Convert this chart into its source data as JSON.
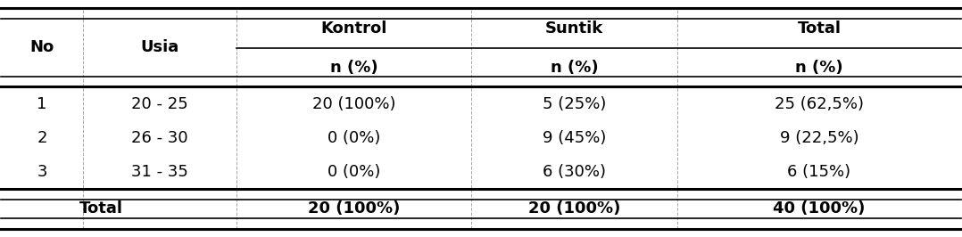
{
  "col_headers_row1": [
    "No",
    "Usia",
    "Kontrol",
    "Suntik",
    "Total"
  ],
  "col_headers_row2": [
    "",
    "",
    "n (%)",
    "n (%)",
    "n (%)"
  ],
  "rows": [
    [
      "1",
      "20 - 25",
      "20 (100%)",
      "5 (25%)",
      "25 (62,5%)"
    ],
    [
      "2",
      "26 - 30",
      "0 (0%)",
      "9 (45%)",
      "9 (22,5%)"
    ],
    [
      "3",
      "31 - 35",
      "0 (0%)",
      "6 (30%)",
      "6 (15%)"
    ]
  ],
  "total_row": [
    "",
    "Total",
    "20 (100%)",
    "20 (100%)",
    "40 (100%)"
  ],
  "bg_color": "#ffffff",
  "text_color": "#000000",
  "fontsize": 13,
  "header_fontsize": 13,
  "figsize": [
    10.78,
    2.66
  ],
  "dpi": 100,
  "vlines_x": [
    0.0,
    0.085,
    0.245,
    0.49,
    0.705,
    1.0
  ],
  "line0": 0.97,
  "line1": 0.8,
  "line2": 0.635,
  "line3": 0.2,
  "line4": 0.03
}
